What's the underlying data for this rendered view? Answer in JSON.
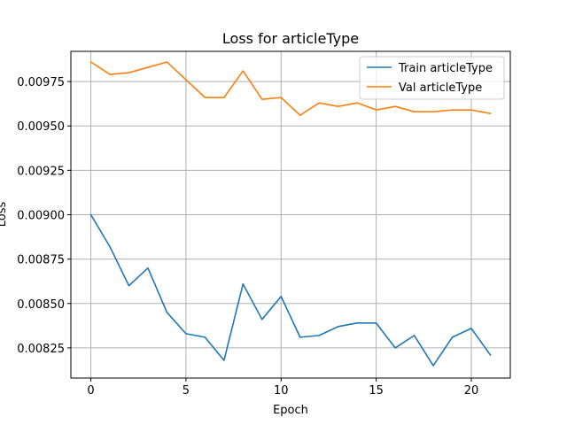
{
  "chart_data": {
    "type": "line",
    "title": "Loss for articleType",
    "xlabel": "Epoch",
    "ylabel": "Loss",
    "xlim": [
      -1.05,
      22.05
    ],
    "ylim": [
      0.00808,
      0.00992
    ],
    "xticks": [
      0,
      5,
      10,
      15,
      20
    ],
    "yticks": [
      0.00825,
      0.0085,
      0.00875,
      0.009,
      0.00925,
      0.0095,
      0.00975
    ],
    "ytick_labels": [
      "0.00825",
      "0.00850",
      "0.00875",
      "0.00900",
      "0.00925",
      "0.00950",
      "0.00975"
    ],
    "grid": true,
    "legend_position": "top-right",
    "x": [
      0,
      1,
      2,
      3,
      4,
      5,
      6,
      7,
      8,
      9,
      10,
      11,
      12,
      13,
      14,
      15,
      16,
      17,
      18,
      19,
      20,
      21
    ],
    "series": [
      {
        "name": "Train articleType",
        "color": "#1f77b4",
        "values": [
          0.009,
          0.00882,
          0.0086,
          0.0087,
          0.00845,
          0.00833,
          0.00831,
          0.00818,
          0.00861,
          0.00841,
          0.00854,
          0.00831,
          0.00832,
          0.00837,
          0.00839,
          0.00839,
          0.00825,
          0.00832,
          0.00815,
          0.00831,
          0.00836,
          0.00821
        ]
      },
      {
        "name": "Val articleType",
        "color": "#ff7f0e",
        "values": [
          0.00986,
          0.00979,
          0.0098,
          0.00983,
          0.00986,
          0.00976,
          0.00966,
          0.00966,
          0.00981,
          0.00965,
          0.00966,
          0.00956,
          0.00963,
          0.00961,
          0.00963,
          0.00959,
          0.00961,
          0.00958,
          0.00958,
          0.00959,
          0.00959,
          0.00957
        ]
      }
    ]
  }
}
